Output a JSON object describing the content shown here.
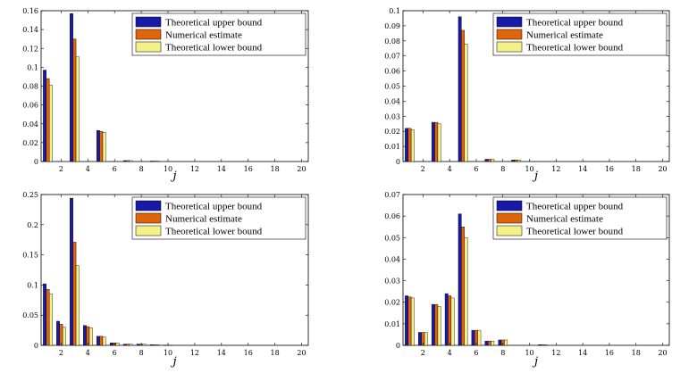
{
  "chart_data": [
    {
      "type": "bar",
      "x": [
        1,
        2,
        3,
        4,
        5,
        6,
        7,
        8,
        9,
        10,
        11,
        12,
        13,
        14,
        15,
        16,
        17,
        18,
        19,
        20
      ],
      "xlabel": "j",
      "ylabel": "",
      "ylim": [
        0,
        0.16
      ],
      "yticks": [
        "0",
        "0.02",
        "0.04",
        "0.06",
        "0.08",
        "0.1",
        "0.12",
        "0.14",
        "0.16"
      ],
      "xticks": [
        "2",
        "4",
        "6",
        "8",
        "10",
        "12",
        "14",
        "16",
        "18",
        "20"
      ],
      "legend_position": "top-right",
      "grid": false,
      "series": [
        {
          "name": "Theoretical upper bound",
          "color": "#1a1aa8",
          "values": [
            0.097,
            0,
            0.157,
            0,
            0.033,
            0,
            0.001,
            0,
            0.0005,
            0,
            0,
            0,
            0,
            0,
            0,
            0,
            0,
            0,
            0,
            0
          ]
        },
        {
          "name": "Numerical estimate",
          "color": "#e0640c",
          "values": [
            0.088,
            0,
            0.13,
            0,
            0.032,
            0,
            0.001,
            0,
            0.0005,
            0,
            0,
            0,
            0,
            0,
            0,
            0,
            0,
            0,
            0,
            0
          ]
        },
        {
          "name": "Theoretical lower bound",
          "color": "#f4f08a",
          "values": [
            0.081,
            0,
            0.111,
            0,
            0.031,
            0,
            0.001,
            0,
            0.0005,
            0,
            0,
            0,
            0,
            0,
            0,
            0,
            0,
            0,
            0,
            0
          ]
        }
      ]
    },
    {
      "type": "bar",
      "x": [
        1,
        2,
        3,
        4,
        5,
        6,
        7,
        8,
        9,
        10,
        11,
        12,
        13,
        14,
        15,
        16,
        17,
        18,
        19,
        20
      ],
      "xlabel": "j",
      "ylabel": "",
      "ylim": [
        0,
        0.1
      ],
      "yticks": [
        "0",
        "0.01",
        "0.02",
        "0.03",
        "0.04",
        "0.05",
        "0.06",
        "0.07",
        "0.08",
        "0.09",
        "0.1"
      ],
      "xticks": [
        "2",
        "4",
        "6",
        "8",
        "10",
        "12",
        "14",
        "16",
        "18",
        "20"
      ],
      "legend_position": "top-right",
      "grid": false,
      "series": [
        {
          "name": "Theoretical upper bound",
          "color": "#1a1aa8",
          "values": [
            0.022,
            0,
            0.026,
            0,
            0.096,
            0,
            0.0015,
            0,
            0.001,
            0,
            0,
            0,
            0,
            0,
            0,
            0,
            0,
            0,
            0,
            0
          ]
        },
        {
          "name": "Numerical estimate",
          "color": "#e0640c",
          "values": [
            0.022,
            0,
            0.026,
            0,
            0.087,
            0,
            0.0015,
            0,
            0.001,
            0,
            0,
            0,
            0,
            0,
            0,
            0,
            0,
            0,
            0,
            0
          ]
        },
        {
          "name": "Theoretical lower bound",
          "color": "#f4f08a",
          "values": [
            0.021,
            0,
            0.025,
            0,
            0.078,
            0,
            0.0015,
            0,
            0.001,
            0,
            0,
            0,
            0,
            0,
            0,
            0,
            0,
            0,
            0,
            0
          ]
        }
      ]
    },
    {
      "type": "bar",
      "x": [
        1,
        2,
        3,
        4,
        5,
        6,
        7,
        8,
        9,
        10,
        11,
        12,
        13,
        14,
        15,
        16,
        17,
        18,
        19,
        20
      ],
      "xlabel": "j",
      "ylabel": "",
      "ylim": [
        0,
        0.25
      ],
      "yticks": [
        "0",
        "0.05",
        "0.1",
        "0.15",
        "0.2",
        "0.25"
      ],
      "xticks": [
        "2",
        "4",
        "6",
        "8",
        "10",
        "12",
        "14",
        "16",
        "18",
        "20"
      ],
      "legend_position": "top-right",
      "grid": false,
      "series": [
        {
          "name": "Theoretical upper bound",
          "color": "#1a1aa8",
          "values": [
            0.102,
            0.04,
            0.244,
            0.033,
            0.015,
            0.004,
            0.002,
            0.002,
            0.001,
            0.0005,
            0,
            0,
            0,
            0,
            0,
            0,
            0,
            0,
            0,
            0
          ]
        },
        {
          "name": "Numerical estimate",
          "color": "#e0640c",
          "values": [
            0.093,
            0.035,
            0.171,
            0.031,
            0.015,
            0.004,
            0.002,
            0.002,
            0.001,
            0.0005,
            0,
            0,
            0,
            0,
            0,
            0,
            0,
            0,
            0,
            0
          ]
        },
        {
          "name": "Theoretical lower bound",
          "color": "#f4f08a",
          "values": [
            0.085,
            0.03,
            0.132,
            0.029,
            0.014,
            0.004,
            0.002,
            0.002,
            0.001,
            0.0005,
            0,
            0,
            0,
            0,
            0,
            0,
            0,
            0,
            0,
            0
          ]
        }
      ]
    },
    {
      "type": "bar",
      "x": [
        1,
        2,
        3,
        4,
        5,
        6,
        7,
        8,
        9,
        10,
        11,
        12,
        13,
        14,
        15,
        16,
        17,
        18,
        19,
        20
      ],
      "xlabel": "j",
      "ylabel": "",
      "ylim": [
        0,
        0.07
      ],
      "yticks": [
        "0",
        "0.01",
        "0.02",
        "0.03",
        "0.04",
        "0.05",
        "0.06",
        "0.07"
      ],
      "xticks": [
        "2",
        "4",
        "6",
        "8",
        "10",
        "12",
        "14",
        "16",
        "18",
        "20"
      ],
      "legend_position": "top-right",
      "grid": false,
      "series": [
        {
          "name": "Theoretical upper bound",
          "color": "#1a1aa8",
          "values": [
            0.023,
            0.006,
            0.019,
            0.024,
            0.061,
            0.007,
            0.002,
            0.0025,
            0,
            0,
            0.0003,
            0,
            0,
            0,
            0,
            0,
            0,
            0,
            0,
            0
          ]
        },
        {
          "name": "Numerical estimate",
          "color": "#e0640c",
          "values": [
            0.0225,
            0.006,
            0.019,
            0.023,
            0.055,
            0.007,
            0.002,
            0.0025,
            0,
            0,
            0.0003,
            0,
            0,
            0,
            0,
            0,
            0,
            0,
            0,
            0
          ]
        },
        {
          "name": "Theoretical lower bound",
          "color": "#f4f08a",
          "values": [
            0.022,
            0.006,
            0.018,
            0.022,
            0.05,
            0.007,
            0.002,
            0.0025,
            0,
            0,
            0.0003,
            0,
            0,
            0,
            0,
            0,
            0,
            0,
            0,
            0
          ]
        }
      ]
    }
  ]
}
